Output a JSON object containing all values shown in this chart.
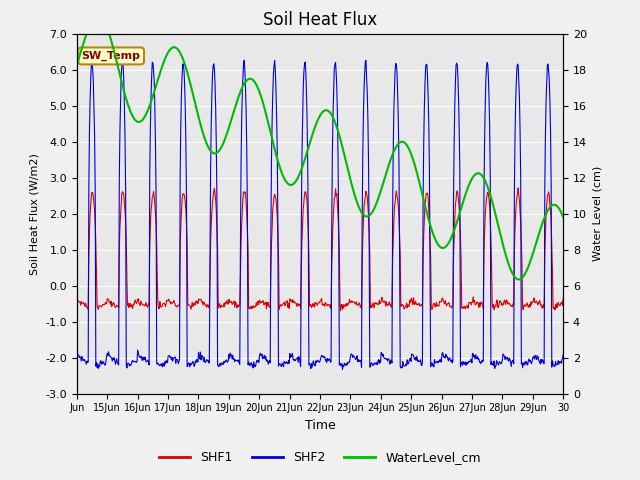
{
  "title": "Soil Heat Flux",
  "ylabel_left": "Soil Heat Flux (W/m2)",
  "ylabel_right": "Water Level (cm)",
  "xlabel": "Time",
  "ylim_left": [
    -3.0,
    7.0
  ],
  "ylim_right": [
    0,
    20
  ],
  "fig_bg_color": "#f0f0f0",
  "plot_bg_color": "#e8e8e8",
  "annotation_text": "SW_Temp",
  "annotation_color": "#8b0000",
  "annotation_bg": "#ffffcc",
  "annotation_border": "#b8860b",
  "shf1_color": "#dd0000",
  "shf2_color": "#0000dd",
  "water_color": "#00bb00",
  "legend_shf1": "SHF1",
  "legend_shf2": "SHF2",
  "legend_water": "WaterLevel_cm",
  "x_tick_labels": [
    "Jun",
    "15Jun",
    "16Jun",
    "17Jun",
    "18Jun",
    "19Jun",
    "20Jun",
    "21Jun",
    "22Jun",
    "23Jun",
    "24Jun",
    "25Jun",
    "26Jun",
    "27Jun",
    "28Jun",
    "29Jun",
    "30"
  ],
  "yticks_left": [
    -3.0,
    -2.0,
    -1.0,
    0.0,
    1.0,
    2.0,
    3.0,
    4.0,
    5.0,
    6.0,
    7.0
  ],
  "yticks_right": [
    0,
    2,
    4,
    6,
    8,
    10,
    12,
    14,
    16,
    18,
    20
  ],
  "grid_color": "#ffffff",
  "title_fontsize": 12,
  "n_days": 16,
  "n_per_day": 48
}
